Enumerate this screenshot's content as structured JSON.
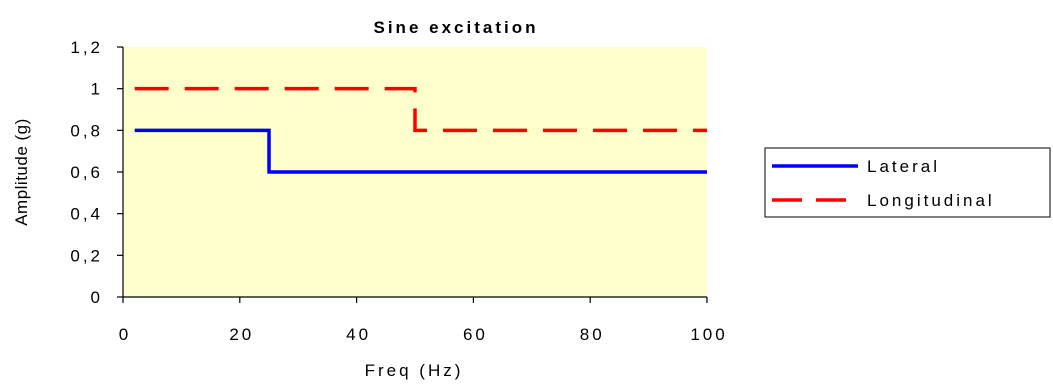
{
  "chart_data": {
    "type": "line",
    "title": "Sine excitation",
    "xlabel": "Freq (Hz)",
    "ylabel": "Amplitude (g)",
    "xlim": [
      0,
      100
    ],
    "ylim": [
      0,
      1.2
    ],
    "x_ticks": [
      0,
      20,
      40,
      60,
      80,
      100
    ],
    "y_ticks": [
      0,
      0.2,
      0.4,
      0.6,
      0.8,
      1.0,
      1.2
    ],
    "x_tick_labels": [
      "0",
      "20",
      "40",
      "60",
      "80",
      "100"
    ],
    "y_tick_labels": [
      "0",
      "0,2",
      "0,4",
      "0,6",
      "0,8",
      "1",
      "1,2"
    ],
    "grid": false,
    "plot_background": "#FFFFCC",
    "legend_position": "right",
    "series": [
      {
        "name": "Lateral",
        "color": "#0000FF",
        "dash": "solid",
        "x": [
          2,
          25,
          25,
          100
        ],
        "y": [
          0.8,
          0.8,
          0.6,
          0.6
        ]
      },
      {
        "name": "Longitudinal",
        "color": "#FF0000",
        "dash": "dashed",
        "x": [
          2,
          50,
          50,
          100
        ],
        "y": [
          1.0,
          1.0,
          0.8,
          0.8
        ]
      }
    ]
  }
}
